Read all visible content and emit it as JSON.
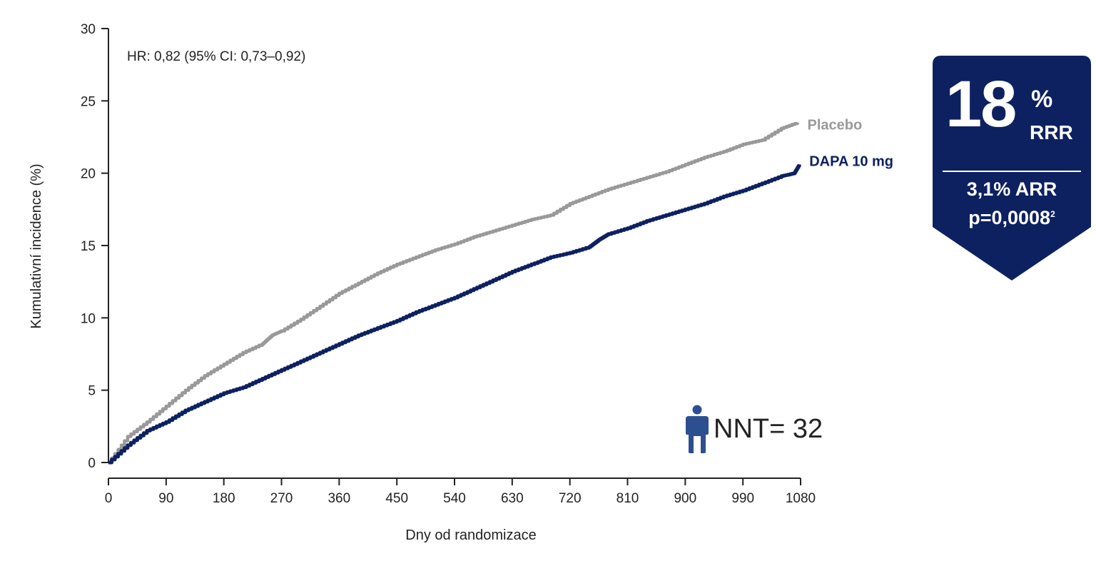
{
  "chart_data": {
    "type": "line",
    "xlabel": "Dny od randomizace",
    "ylabel": "Kumulativní incidence (%)",
    "xlim": [
      0,
      1080
    ],
    "ylim": [
      0,
      30
    ],
    "xticks": [
      0,
      90,
      180,
      270,
      360,
      450,
      540,
      630,
      720,
      810,
      900,
      990,
      1080
    ],
    "yticks": [
      0,
      5,
      10,
      15,
      20,
      25,
      30
    ],
    "grid": false,
    "legend": "inline labels at line ends",
    "annotation": "HR: 0,82 (95% CI: 0,73–0,92)",
    "series": [
      {
        "name": "Placebo",
        "color": "#999999",
        "x": [
          0,
          30,
          60,
          90,
          120,
          150,
          180,
          210,
          240,
          255,
          270,
          300,
          330,
          360,
          390,
          420,
          450,
          480,
          510,
          540,
          570,
          600,
          630,
          660,
          690,
          720,
          750,
          780,
          810,
          840,
          870,
          900,
          930,
          960,
          990,
          1020,
          1050,
          1075
        ],
        "values": [
          0,
          1.8,
          2.8,
          3.9,
          5.0,
          6.0,
          6.8,
          7.6,
          8.2,
          8.8,
          9.1,
          9.9,
          10.8,
          11.7,
          12.4,
          13.1,
          13.7,
          14.2,
          14.7,
          15.1,
          15.6,
          16.0,
          16.4,
          16.8,
          17.1,
          17.9,
          18.4,
          18.9,
          19.3,
          19.7,
          20.1,
          20.6,
          21.1,
          21.5,
          22.0,
          22.3,
          23.1,
          23.5
        ]
      },
      {
        "name": "DAPA 10 mg",
        "color": "#0d2161",
        "x": [
          0,
          30,
          60,
          90,
          120,
          150,
          180,
          210,
          240,
          270,
          300,
          330,
          360,
          390,
          420,
          450,
          480,
          510,
          540,
          570,
          600,
          630,
          660,
          690,
          720,
          750,
          765,
          780,
          810,
          840,
          870,
          900,
          930,
          960,
          990,
          1020,
          1050,
          1070,
          1078
        ],
        "values": [
          0,
          1.2,
          2.2,
          2.8,
          3.6,
          4.2,
          4.8,
          5.2,
          5.8,
          6.4,
          7.0,
          7.6,
          8.2,
          8.8,
          9.3,
          9.8,
          10.4,
          10.9,
          11.4,
          12.0,
          12.6,
          13.2,
          13.7,
          14.2,
          14.5,
          14.9,
          15.4,
          15.8,
          16.2,
          16.7,
          17.1,
          17.5,
          17.9,
          18.4,
          18.8,
          19.3,
          19.8,
          20.0,
          20.6
        ]
      }
    ]
  },
  "badge": {
    "big_number": "18",
    "percent": "%",
    "rrr_label": "RRR",
    "arr_text": "3,1% ARR",
    "p_text": "p=0,0008",
    "p_sup": "2",
    "color": "#0d2161"
  },
  "nnt": {
    "icon": "person-icon",
    "text": "NNT= 32",
    "icon_color": "#2e4f8f"
  }
}
